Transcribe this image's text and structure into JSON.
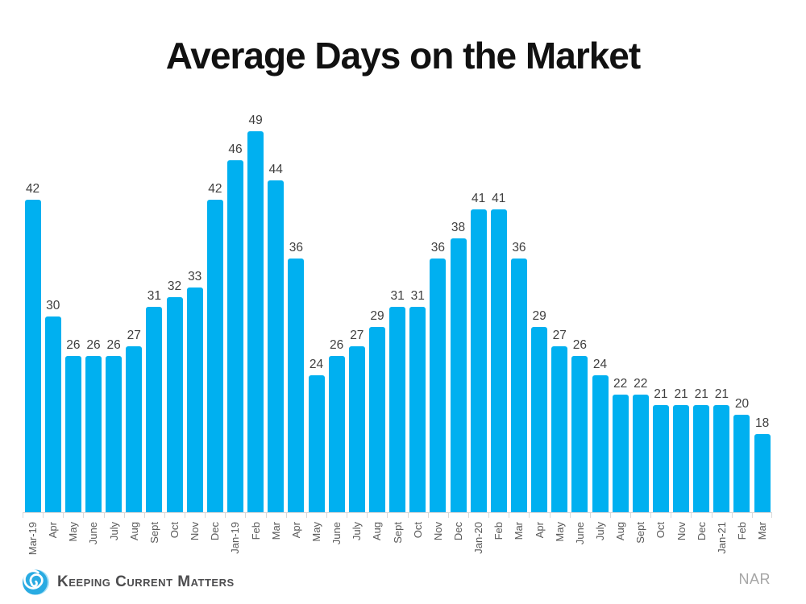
{
  "header": {
    "title": "Average Days on the Market"
  },
  "chart_data": {
    "type": "bar",
    "title": "Average Days on the Market",
    "categories": [
      "Mar-19",
      "Apr",
      "May",
      "June",
      "July",
      "Aug",
      "Sept",
      "Oct",
      "Nov",
      "Dec",
      "Jan-19",
      "Feb",
      "Mar",
      "Apr",
      "May",
      "June",
      "July",
      "Aug",
      "Sept",
      "Oct",
      "Nov",
      "Dec",
      "Jan-20",
      "Feb",
      "Mar",
      "Apr",
      "May",
      "June",
      "July",
      "Aug",
      "Sept",
      "Oct",
      "Nov",
      "Dec",
      "Jan-21",
      "Feb",
      "Mar"
    ],
    "values": [
      42,
      30,
      26,
      26,
      26,
      27,
      31,
      32,
      33,
      42,
      46,
      49,
      44,
      36,
      24,
      26,
      27,
      29,
      31,
      31,
      36,
      38,
      41,
      41,
      36,
      29,
      27,
      26,
      24,
      22,
      22,
      21,
      21,
      21,
      21,
      20,
      18
    ],
    "xlabel": "",
    "ylabel": "",
    "ylim": [
      10,
      50
    ],
    "grid": "off",
    "legend": "none",
    "bar_color": "#00b0f0",
    "value_label_color": "#3f3f3f",
    "axis_label_color": "#595959",
    "axis_line_color": "#d9d9d9"
  },
  "footer": {
    "logo_text": "Keeping Current Matters",
    "logo_icon": "kcm-swirl-icon",
    "logo_icon_color": "#29abe2",
    "source": "NAR"
  }
}
